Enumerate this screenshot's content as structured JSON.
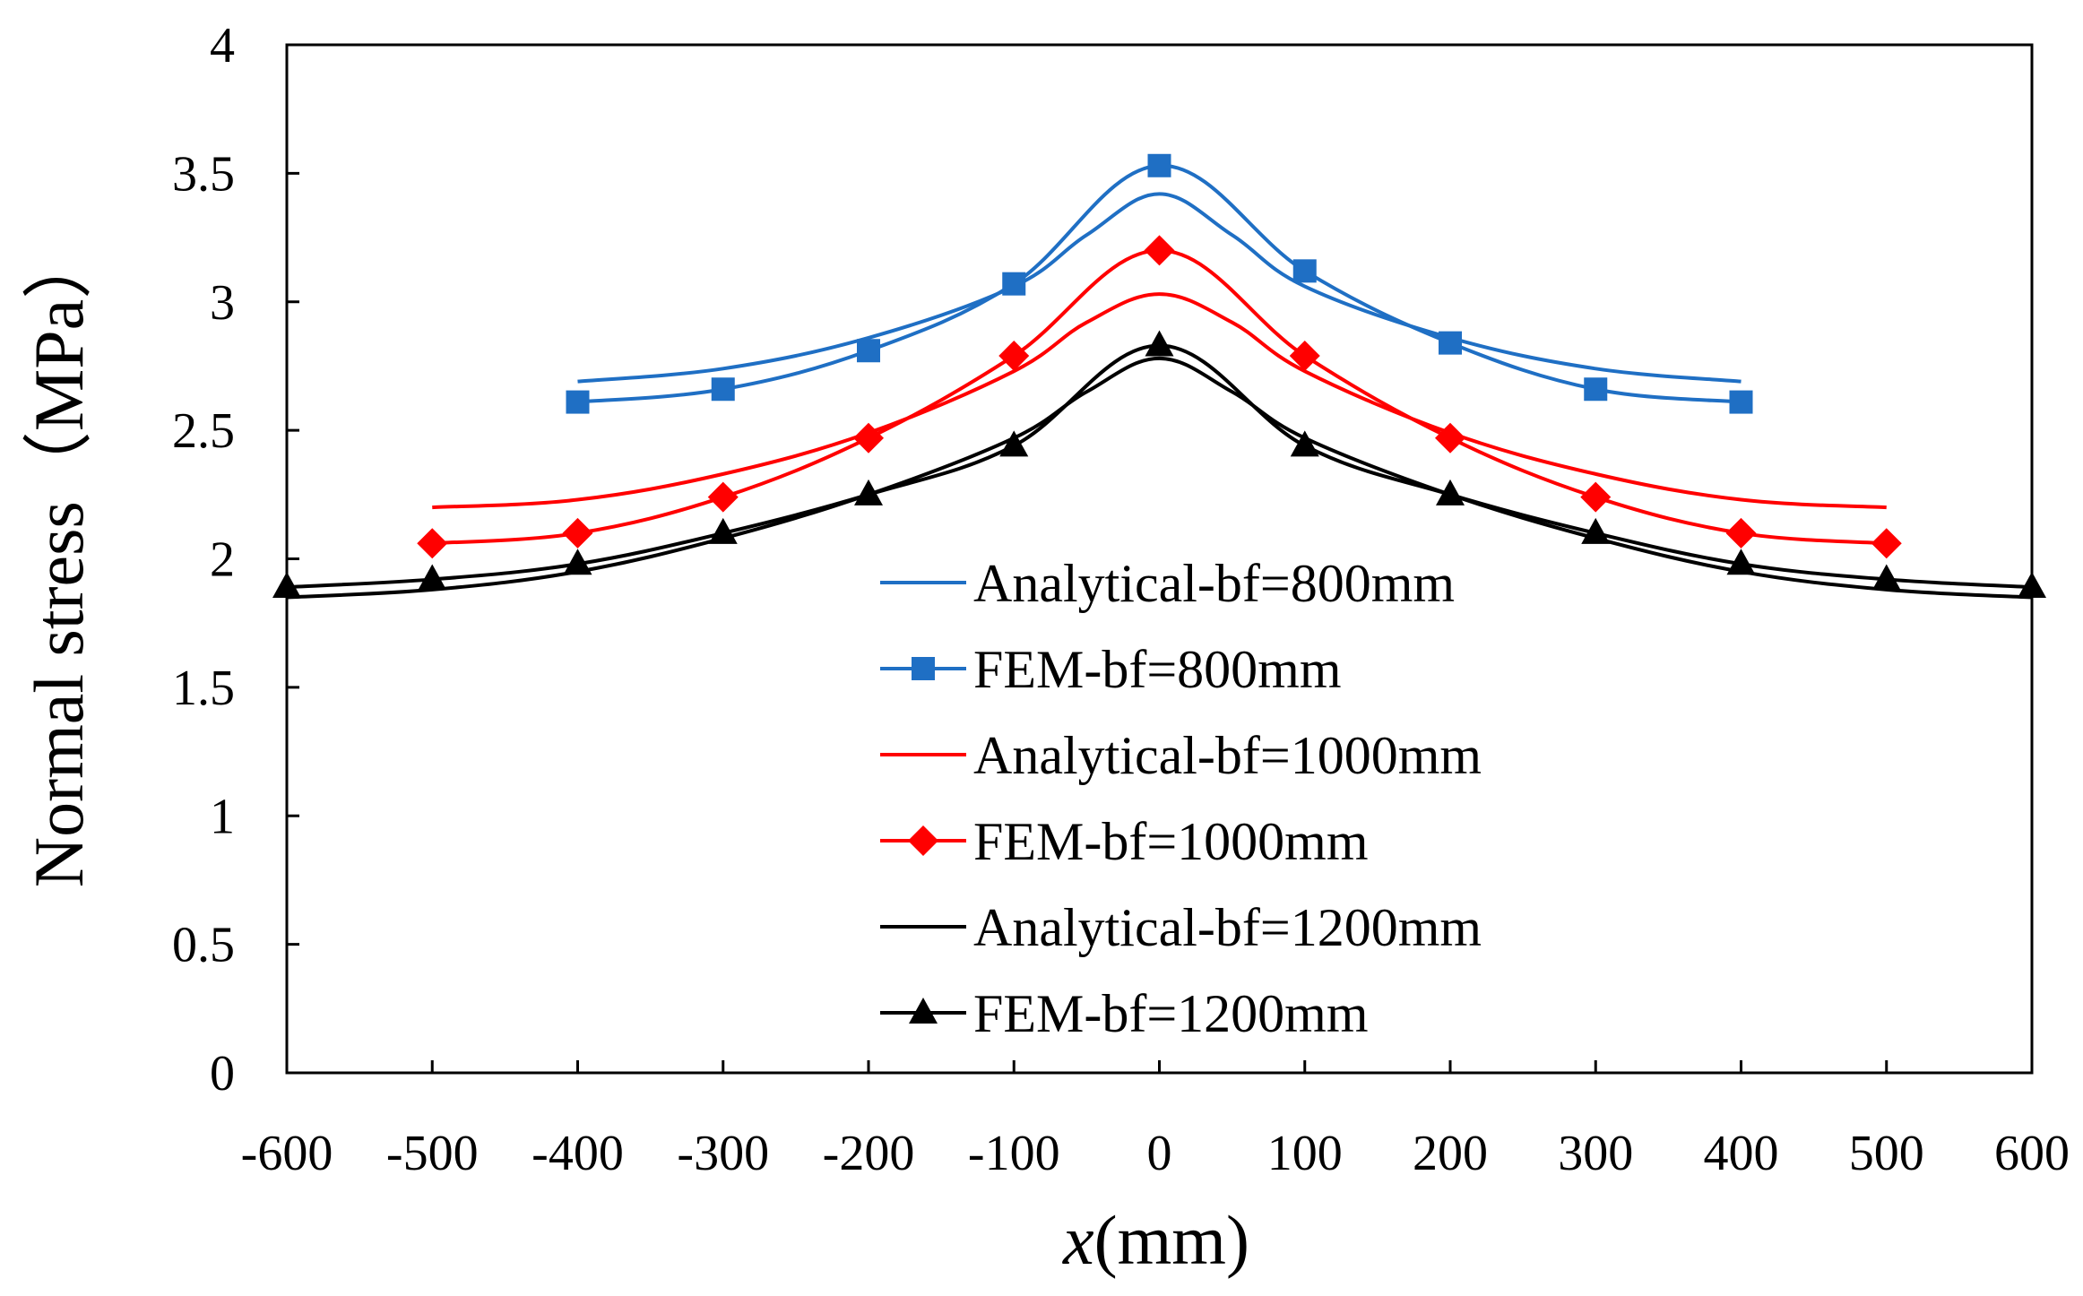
{
  "chart_data": {
    "type": "line",
    "xlabel": {
      "italic": "x",
      "rest": "(mm)"
    },
    "ylabel": "Normal stress（MPa）",
    "xlim": [
      -600,
      600
    ],
    "ylim": [
      0,
      4
    ],
    "x_ticks": [
      -600,
      -500,
      -400,
      -300,
      -200,
      -100,
      0,
      100,
      200,
      300,
      400,
      500,
      600
    ],
    "y_ticks": [
      0,
      0.5,
      1,
      1.5,
      2,
      2.5,
      3,
      3.5,
      4
    ],
    "grid": false,
    "legend_position": "center",
    "series": [
      {
        "name": "Analytical-bf=800mm",
        "color": "#1f6fc4",
        "marker": "none",
        "x": [
          -400,
          -300,
          -200,
          -100,
          -50,
          0,
          50,
          100,
          200,
          300,
          400
        ],
        "y": [
          2.69,
          2.74,
          2.86,
          3.06,
          3.26,
          3.42,
          3.26,
          3.06,
          2.86,
          2.74,
          2.69
        ]
      },
      {
        "name": "FEM-bf=800mm",
        "color": "#1f6fc4",
        "marker": "square",
        "x": [
          -400,
          -300,
          -200,
          -100,
          0,
          100,
          200,
          300,
          400
        ],
        "y": [
          2.61,
          2.66,
          2.81,
          3.07,
          3.53,
          3.12,
          2.84,
          2.66,
          2.61
        ]
      },
      {
        "name": "Analytical-bf=1000mm",
        "color": "#ff0000",
        "marker": "none",
        "x": [
          -500,
          -400,
          -300,
          -200,
          -100,
          -50,
          0,
          50,
          100,
          200,
          300,
          400,
          500
        ],
        "y": [
          2.2,
          2.23,
          2.33,
          2.49,
          2.73,
          2.92,
          3.03,
          2.92,
          2.73,
          2.49,
          2.33,
          2.23,
          2.2
        ]
      },
      {
        "name": "FEM-bf=1000mm",
        "color": "#ff0000",
        "marker": "diamond",
        "x": [
          -500,
          -400,
          -300,
          -200,
          -100,
          0,
          100,
          200,
          300,
          400,
          500
        ],
        "y": [
          2.06,
          2.1,
          2.24,
          2.47,
          2.79,
          3.2,
          2.79,
          2.47,
          2.24,
          2.1,
          2.06
        ]
      },
      {
        "name": "Analytical-bf=1200mm",
        "color": "#000000",
        "marker": "none",
        "x": [
          -600,
          -500,
          -400,
          -300,
          -200,
          -100,
          -50,
          0,
          50,
          100,
          200,
          300,
          400,
          500,
          600
        ],
        "y": [
          1.85,
          1.88,
          1.95,
          2.08,
          2.25,
          2.47,
          2.65,
          2.78,
          2.65,
          2.47,
          2.25,
          2.08,
          1.95,
          1.88,
          1.85
        ]
      },
      {
        "name": "FEM-bf=1200mm",
        "color": "#000000",
        "marker": "triangle",
        "x": [
          -600,
          -500,
          -400,
          -300,
          -200,
          -100,
          0,
          100,
          200,
          300,
          400,
          500,
          600
        ],
        "y": [
          1.89,
          1.92,
          1.98,
          2.1,
          2.25,
          2.44,
          2.83,
          2.44,
          2.25,
          2.1,
          1.98,
          1.92,
          1.89
        ]
      }
    ]
  }
}
